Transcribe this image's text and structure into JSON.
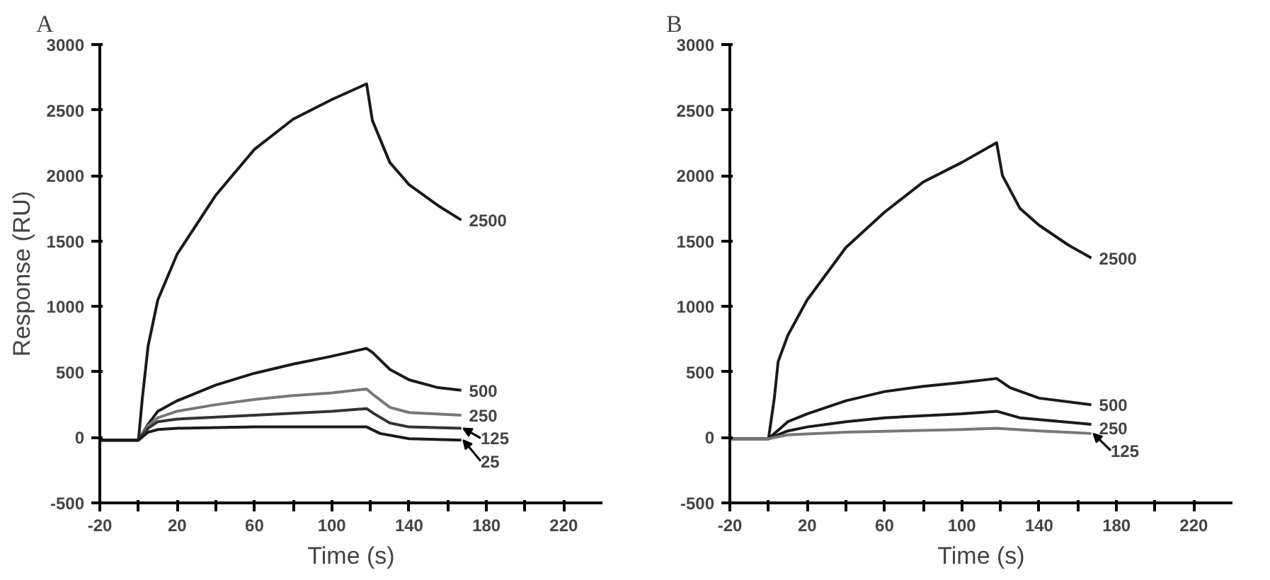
{
  "chart_data": [
    {
      "type": "line",
      "title": "A",
      "xlabel": "Time (s)",
      "ylabel": "Response (RU)",
      "xlim": [
        -20,
        240
      ],
      "ylim": [
        -500,
        3000
      ],
      "xticks": [
        -20,
        {
          "value": 0,
          "label": null
        },
        20,
        {
          "value": 40,
          "label": null
        },
        60,
        {
          "value": 80,
          "label": null
        },
        100,
        {
          "value": 120,
          "label": null
        },
        140,
        {
          "value": 160,
          "label": null
        },
        180,
        {
          "value": 200,
          "label": null
        },
        220
      ],
      "yticks": [
        -500,
        0,
        500,
        1000,
        1500,
        2000,
        2500,
        3000
      ],
      "grid": false,
      "marker": "none",
      "line_style": "solid",
      "series": [
        {
          "name": "2500",
          "color": "#1a1a1a",
          "x": [
            -20,
            0,
            2,
            5,
            10,
            20,
            40,
            60,
            80,
            100,
            118,
            121,
            130,
            140,
            155,
            167
          ],
          "values": [
            -20,
            -20,
            300,
            700,
            1050,
            1400,
            1850,
            2200,
            2430,
            2580,
            2700,
            2420,
            2100,
            1930,
            1770,
            1660
          ]
        },
        {
          "name": "500",
          "color": "#1a1a1a",
          "x": [
            -20,
            0,
            5,
            10,
            20,
            40,
            60,
            80,
            100,
            118,
            121,
            130,
            140,
            155,
            167
          ],
          "values": [
            -20,
            -20,
            100,
            200,
            280,
            400,
            490,
            560,
            620,
            680,
            650,
            520,
            440,
            380,
            360
          ]
        },
        {
          "name": "250",
          "color": "#777777",
          "x": [
            -20,
            0,
            5,
            10,
            20,
            40,
            60,
            80,
            100,
            118,
            122,
            130,
            140,
            167
          ],
          "values": [
            -20,
            -20,
            90,
            150,
            200,
            250,
            290,
            320,
            340,
            370,
            320,
            230,
            190,
            170
          ]
        },
        {
          "name": "125",
          "color": "#333333",
          "x": [
            -20,
            0,
            5,
            10,
            20,
            60,
            100,
            118,
            122,
            130,
            140,
            167
          ],
          "values": [
            -20,
            -20,
            70,
            120,
            140,
            170,
            200,
            220,
            180,
            110,
            80,
            70
          ]
        },
        {
          "name": "25",
          "color": "#1a1a1a",
          "x": [
            -20,
            0,
            5,
            10,
            20,
            60,
            100,
            118,
            125,
            140,
            167
          ],
          "values": [
            -20,
            -20,
            40,
            60,
            70,
            80,
            80,
            80,
            30,
            -10,
            -20
          ]
        }
      ]
    },
    {
      "type": "line",
      "title": "B",
      "xlabel": "Time (s)",
      "xlim": [
        -20,
        240
      ],
      "ylim": [
        -500,
        3000
      ],
      "xticks": [
        -20,
        {
          "value": 0,
          "label": null
        },
        20,
        {
          "value": 40,
          "label": null
        },
        60,
        {
          "value": 80,
          "label": null
        },
        100,
        {
          "value": 120,
          "label": null
        },
        140,
        {
          "value": 160,
          "label": null
        },
        180,
        {
          "value": 200,
          "label": null
        },
        220
      ],
      "yticks": [
        -500,
        0,
        500,
        1000,
        1500,
        2000,
        2500,
        3000
      ],
      "grid": false,
      "marker": "none",
      "line_style": "solid",
      "series": [
        {
          "name": "2500",
          "color": "#1a1a1a",
          "x": [
            -20,
            0,
            3,
            5,
            10,
            20,
            40,
            60,
            80,
            100,
            118,
            121,
            130,
            140,
            155,
            167
          ],
          "values": [
            -10,
            -10,
            300,
            580,
            780,
            1050,
            1450,
            1720,
            1950,
            2100,
            2250,
            2000,
            1750,
            1620,
            1470,
            1370
          ]
        },
        {
          "name": "500",
          "color": "#1a1a1a",
          "x": [
            -20,
            0,
            10,
            20,
            40,
            60,
            80,
            100,
            118,
            125,
            140,
            167
          ],
          "values": [
            -10,
            -10,
            120,
            180,
            280,
            350,
            390,
            420,
            450,
            380,
            300,
            250
          ]
        },
        {
          "name": "250",
          "color": "#1a1a1a",
          "x": [
            -20,
            0,
            10,
            20,
            40,
            60,
            100,
            118,
            130,
            167
          ],
          "values": [
            -10,
            -10,
            50,
            80,
            120,
            150,
            180,
            200,
            150,
            100
          ]
        },
        {
          "name": "125",
          "color": "#777777",
          "x": [
            -20,
            0,
            10,
            40,
            100,
            118,
            140,
            167
          ],
          "values": [
            -10,
            -10,
            20,
            40,
            60,
            70,
            50,
            30
          ]
        }
      ]
    }
  ]
}
